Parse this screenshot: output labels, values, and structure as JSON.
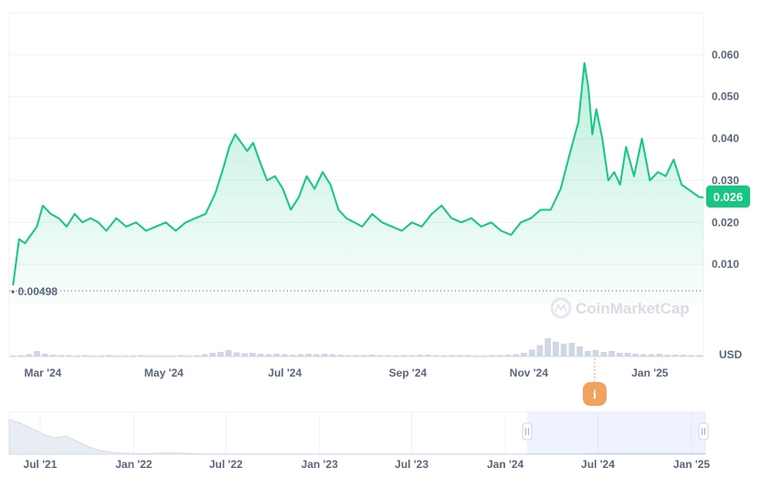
{
  "colors": {
    "line": "#16c784",
    "area_top": "#16c784",
    "grid": "#eff2f5",
    "axis_text": "#58667e",
    "price_badge_bg": "#16c784",
    "price_badge_text": "#ffffff",
    "volume": "#cfd6e4",
    "navigator_fill": "#e8ecf3",
    "navigator_selection": "rgba(56,97,251,0.08)",
    "event_marker": "#f0a35e",
    "watermark": "#cfd6e4"
  },
  "watermark": "CoinMarketCap",
  "currency": "USD",
  "current_price": "0.026",
  "start_price_label": "0.00498",
  "event_marker_label": "i",
  "chart_data": {
    "type": "line",
    "title": "",
    "x_start": "2024-02-13",
    "x_end": "2025-01-28",
    "x_tick_labels": [
      "Mar '24",
      "May '24",
      "Jul '24",
      "Sep '24",
      "Nov '24",
      "Jan '25"
    ],
    "x_tick_dates": [
      "2024-03-01",
      "2024-05-01",
      "2024-07-01",
      "2024-09-01",
      "2024-11-01",
      "2025-01-01"
    ],
    "ylim": [
      0,
      0.07
    ],
    "y_ticks": [
      0.01,
      0.02,
      0.03,
      0.04,
      0.05,
      0.06
    ],
    "y_tick_labels": [
      "0.010",
      "0.020",
      "0.030",
      "0.040",
      "0.050",
      "0.060"
    ],
    "series": [
      {
        "x": [
          "2024-02-15",
          "2024-02-18",
          "2024-02-21",
          "2024-02-24",
          "2024-02-27",
          "2024-03-01",
          "2024-03-05",
          "2024-03-09",
          "2024-03-13",
          "2024-03-17",
          "2024-03-21",
          "2024-03-25",
          "2024-03-29",
          "2024-04-02",
          "2024-04-07",
          "2024-04-12",
          "2024-04-17",
          "2024-04-22",
          "2024-04-27",
          "2024-05-02",
          "2024-05-07",
          "2024-05-12",
          "2024-05-17",
          "2024-05-22",
          "2024-05-27",
          "2024-05-31",
          "2024-06-03",
          "2024-06-06",
          "2024-06-09",
          "2024-06-12",
          "2024-06-15",
          "2024-06-18",
          "2024-06-22",
          "2024-06-26",
          "2024-06-30",
          "2024-07-04",
          "2024-07-08",
          "2024-07-12",
          "2024-07-16",
          "2024-07-20",
          "2024-07-24",
          "2024-07-28",
          "2024-08-01",
          "2024-08-05",
          "2024-08-09",
          "2024-08-14",
          "2024-08-19",
          "2024-08-24",
          "2024-08-29",
          "2024-09-03",
          "2024-09-08",
          "2024-09-13",
          "2024-09-18",
          "2024-09-23",
          "2024-09-28",
          "2024-10-03",
          "2024-10-08",
          "2024-10-13",
          "2024-10-18",
          "2024-10-23",
          "2024-10-28",
          "2024-11-02",
          "2024-11-07",
          "2024-11-12",
          "2024-11-17",
          "2024-11-22",
          "2024-11-26",
          "2024-11-29",
          "2024-12-01",
          "2024-12-03",
          "2024-12-05",
          "2024-12-08",
          "2024-12-11",
          "2024-12-14",
          "2024-12-17",
          "2024-12-20",
          "2024-12-24",
          "2024-12-28",
          "2025-01-01",
          "2025-01-05",
          "2025-01-09",
          "2025-01-13",
          "2025-01-17",
          "2025-01-20",
          "2025-01-23",
          "2025-01-26",
          "2025-01-28"
        ],
        "y": [
          0.005,
          0.016,
          0.015,
          0.017,
          0.019,
          0.024,
          0.022,
          0.021,
          0.019,
          0.022,
          0.02,
          0.021,
          0.02,
          0.018,
          0.021,
          0.019,
          0.02,
          0.018,
          0.019,
          0.02,
          0.018,
          0.02,
          0.021,
          0.022,
          0.027,
          0.033,
          0.038,
          0.041,
          0.039,
          0.037,
          0.039,
          0.035,
          0.03,
          0.031,
          0.028,
          0.023,
          0.026,
          0.031,
          0.028,
          0.032,
          0.029,
          0.023,
          0.021,
          0.02,
          0.019,
          0.022,
          0.02,
          0.019,
          0.018,
          0.02,
          0.019,
          0.022,
          0.024,
          0.021,
          0.02,
          0.021,
          0.019,
          0.02,
          0.018,
          0.017,
          0.02,
          0.021,
          0.023,
          0.023,
          0.028,
          0.037,
          0.044,
          0.058,
          0.052,
          0.041,
          0.047,
          0.04,
          0.03,
          0.032,
          0.029,
          0.038,
          0.031,
          0.04,
          0.03,
          0.032,
          0.031,
          0.035,
          0.029,
          0.028,
          0.027,
          0.026,
          0.026
        ]
      }
    ],
    "volume_relative": [
      0.02,
      0.03,
      0.05,
      0.12,
      0.06,
      0.04,
      0.03,
      0.03,
      0.02,
      0.03,
      0.02,
      0.02,
      0.03,
      0.02,
      0.02,
      0.02,
      0.03,
      0.02,
      0.02,
      0.02,
      0.02,
      0.03,
      0.02,
      0.03,
      0.05,
      0.08,
      0.1,
      0.14,
      0.09,
      0.07,
      0.08,
      0.06,
      0.05,
      0.06,
      0.05,
      0.04,
      0.05,
      0.06,
      0.05,
      0.06,
      0.05,
      0.04,
      0.03,
      0.03,
      0.03,
      0.04,
      0.03,
      0.03,
      0.03,
      0.03,
      0.03,
      0.04,
      0.04,
      0.03,
      0.03,
      0.03,
      0.03,
      0.03,
      0.02,
      0.02,
      0.03,
      0.03,
      0.04,
      0.05,
      0.08,
      0.15,
      0.25,
      0.4,
      0.32,
      0.28,
      0.3,
      0.22,
      0.12,
      0.14,
      0.1,
      0.12,
      0.08,
      0.08,
      0.06,
      0.05,
      0.05,
      0.06,
      0.04,
      0.04,
      0.04,
      0.03,
      0.03
    ],
    "navigator": {
      "x_tick_labels": [
        "Jul '21",
        "Jan '22",
        "Jul '22",
        "Jan '23",
        "Jul '23",
        "Jan '24",
        "Jul '24",
        "Jan '25"
      ],
      "range_start": "2021-05-01",
      "range_end": "2025-01-28",
      "selection_start": "2024-02-13",
      "selection_end": "2025-01-28",
      "profile_relative": [
        0.95,
        0.85,
        0.7,
        0.55,
        0.45,
        0.5,
        0.35,
        0.2,
        0.1,
        0.05,
        0.03,
        0.02,
        0.02,
        0.03,
        0.04,
        0.03,
        0.02,
        0.01,
        0.01,
        0.01,
        0.01,
        0.01,
        0.01,
        0.01,
        0.01,
        0.01,
        0.01,
        0.01,
        0.01,
        0.01,
        0.01,
        0.01,
        0.01,
        0.01,
        0.01,
        0.01,
        0.01,
        0.01,
        0.01,
        0.01,
        0.01,
        0.01,
        0.01,
        0.01,
        0.01,
        0.01,
        0.01,
        0.01,
        0.01,
        0.01,
        0.01,
        0.02,
        0.02,
        0.02,
        0.02,
        0.02,
        0.02,
        0.02,
        0.02,
        0.02,
        0.02,
        0.02
      ]
    }
  }
}
